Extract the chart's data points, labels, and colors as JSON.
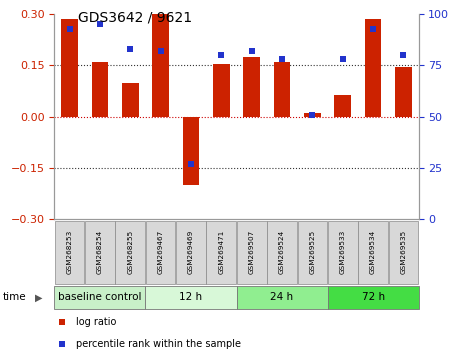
{
  "title": "GDS3642 / 9621",
  "samples": [
    "GSM268253",
    "GSM268254",
    "GSM268255",
    "GSM269467",
    "GSM269469",
    "GSM269471",
    "GSM269507",
    "GSM269524",
    "GSM269525",
    "GSM269533",
    "GSM269534",
    "GSM269535"
  ],
  "log_ratio": [
    0.285,
    0.16,
    0.1,
    0.3,
    -0.2,
    0.155,
    0.175,
    0.16,
    0.01,
    0.065,
    0.285,
    0.145
  ],
  "percentile": [
    93,
    95,
    83,
    82,
    27,
    80,
    82,
    78,
    51,
    78,
    93,
    80
  ],
  "groups": [
    {
      "label": "baseline control",
      "start": 0,
      "end": 3,
      "color": "#c8f0c8"
    },
    {
      "label": "12 h",
      "start": 3,
      "end": 6,
      "color": "#d8f8d8"
    },
    {
      "label": "24 h",
      "start": 6,
      "end": 9,
      "color": "#90ee90"
    },
    {
      "label": "72 h",
      "start": 9,
      "end": 12,
      "color": "#44dd44"
    }
  ],
  "bar_color": "#cc2200",
  "dot_color": "#2233cc",
  "ylim_left": [
    -0.3,
    0.3
  ],
  "ylim_right": [
    0,
    100
  ],
  "yticks_left": [
    -0.3,
    -0.15,
    0,
    0.15,
    0.3
  ],
  "yticks_right": [
    0,
    25,
    50,
    75,
    100
  ],
  "hlines": [
    0.15,
    0.0,
    -0.15
  ],
  "hline_zero_color": "#cc0000",
  "hline_other_color": "#333333",
  "bg_color": "#ffffff",
  "spine_color": "#999999",
  "bar_width": 0.55,
  "legend_items": [
    {
      "label": "log ratio",
      "color": "#cc2200"
    },
    {
      "label": "percentile rank within the sample",
      "color": "#2233cc"
    }
  ],
  "sample_box_color": "#d8d8d8",
  "sample_box_edge": "#888888",
  "group_border_color": "#777777",
  "time_arrow_color": "#555555"
}
